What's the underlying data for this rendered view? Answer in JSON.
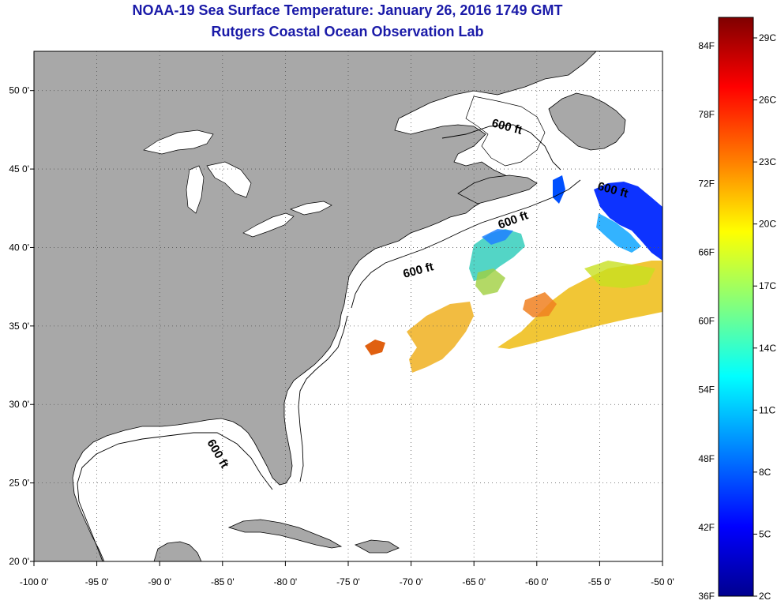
{
  "title": {
    "line1": "NOAA-19 Sea Surface Temperature:  January 26, 2016 1749 GMT",
    "line2": "Rutgers Coastal Ocean Observation Lab"
  },
  "map": {
    "lon_range": [
      -100,
      -50
    ],
    "lat_range": [
      20,
      52.5
    ],
    "lon_ticks": [
      {
        "value": -100,
        "label": "-100 0'"
      },
      {
        "value": -95,
        "label": "-95 0'"
      },
      {
        "value": -90,
        "label": "-90 0'"
      },
      {
        "value": -85,
        "label": "-85 0'"
      },
      {
        "value": -80,
        "label": "-80 0'"
      },
      {
        "value": -75,
        "label": "-75 0'"
      },
      {
        "value": -70,
        "label": "-70 0'"
      },
      {
        "value": -65,
        "label": "-65 0'"
      },
      {
        "value": -60,
        "label": "-60 0'"
      },
      {
        "value": -55,
        "label": "-55 0'"
      },
      {
        "value": -50,
        "label": "-50 0'"
      }
    ],
    "lat_ticks": [
      {
        "value": 50,
        "label": "50 0'"
      },
      {
        "value": 45,
        "label": "45 0'"
      },
      {
        "value": 40,
        "label": "40 0'"
      },
      {
        "value": 35,
        "label": "35 0'"
      },
      {
        "value": 30,
        "label": "30 0'"
      },
      {
        "value": 25,
        "label": "25 0'"
      },
      {
        "value": 20,
        "label": "20 0'"
      }
    ],
    "land_color": "#a8a8a8",
    "ocean_color": "#ffffff",
    "grid": "dotted",
    "contour_labels": [
      "600 ft",
      "600 ft",
      "600 ft",
      "600 ft",
      "600 ft"
    ]
  },
  "colorbar": {
    "fahrenheit_labels": [
      "84F",
      "78F",
      "72F",
      "66F",
      "60F",
      "54F",
      "48F",
      "42F",
      "36F"
    ],
    "celsius_labels": [
      "29C",
      "26C",
      "23C",
      "20C",
      "17C",
      "14C",
      "11C",
      "8C",
      "5C",
      "2C"
    ],
    "colors": [
      "#7f0000",
      "#ff0000",
      "#ff8000",
      "#ffff00",
      "#80ff80",
      "#00ffff",
      "#0080ff",
      "#0000ff",
      "#00008f"
    ]
  }
}
